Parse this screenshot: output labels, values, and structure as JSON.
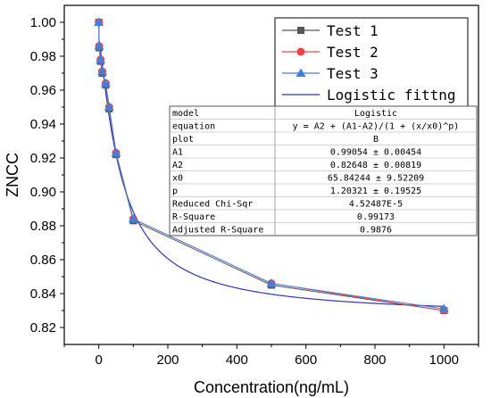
{
  "chart_data": {
    "type": "line",
    "xlabel": "Concentration(ng/mL)",
    "ylabel": "ZNCC",
    "xlim": [
      -100,
      1100
    ],
    "ylim": [
      0.81,
      1.01
    ],
    "x_ticks": [
      0,
      200,
      400,
      600,
      800,
      1000
    ],
    "y_ticks": [
      0.82,
      0.84,
      0.86,
      0.88,
      0.9,
      0.92,
      0.94,
      0.96,
      0.98,
      1.0
    ],
    "x_tick_labels": [
      "0",
      "200",
      "400",
      "600",
      "800",
      "1000"
    ],
    "y_tick_labels": [
      "0.82",
      "0.84",
      "0.86",
      "0.88",
      "0.90",
      "0.92",
      "0.94",
      "0.96",
      "0.98",
      "1.00"
    ],
    "grid": false,
    "legend_position": "top-right",
    "x": [
      0,
      1,
      5,
      10,
      20,
      30,
      50,
      100,
      500,
      1000
    ],
    "series": [
      {
        "name": "Test 1",
        "marker": "square",
        "color": "#555555",
        "values": [
          1.0,
          0.985,
          0.977,
          0.97,
          0.963,
          0.949,
          0.922,
          0.883,
          0.845,
          0.83
        ]
      },
      {
        "name": "Test 2",
        "marker": "circle",
        "color": "#ee4444",
        "values": [
          1.0,
          0.986,
          0.978,
          0.971,
          0.964,
          0.95,
          0.923,
          0.884,
          0.846,
          0.83
        ]
      },
      {
        "name": "Test 3",
        "marker": "triangle",
        "color": "#3f7fe0",
        "values": [
          1.0,
          0.986,
          0.978,
          0.971,
          0.964,
          0.95,
          0.923,
          0.884,
          0.846,
          0.831
        ]
      }
    ],
    "fit": {
      "name": "Logistic fittng",
      "color": "#3333bb",
      "A1": 0.99054,
      "A2": 0.82648,
      "x0": 65.84244,
      "p": 1.20321
    },
    "fit_table": [
      [
        "model",
        "Logistic"
      ],
      [
        "equation",
        "y = A2 + (A1-A2)/(1 + (x/x0)^p)"
      ],
      [
        "plot",
        "B"
      ],
      [
        "A1",
        "0.99054 ± 0.00454"
      ],
      [
        "A2",
        "0.82648 ± 0.00819"
      ],
      [
        "x0",
        "65.84244 ± 9.52209"
      ],
      [
        "p",
        "1.20321 ± 0.19525"
      ],
      [
        "Reduced Chi-Sqr",
        "4.52487E-5"
      ],
      [
        "R-Square",
        "0.99173"
      ],
      [
        "Adjusted R-Square",
        "0.9876"
      ]
    ]
  }
}
